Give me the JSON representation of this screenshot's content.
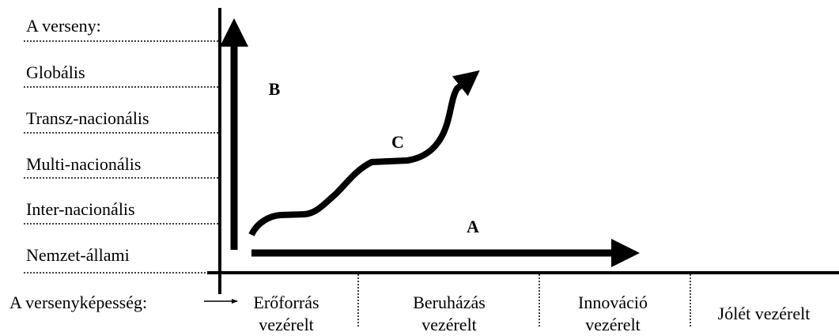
{
  "y_labels": [
    "A verseny:",
    "Globális",
    "Transz-nacionális",
    "Multi-nacionális",
    "Inter-nacionális",
    "Nemzet-állami"
  ],
  "x_axis_title": "A versenyképesség:",
  "x_labels": [
    [
      "Erőforrás",
      "vezérelt"
    ],
    [
      "Beruházás",
      "vezérelt"
    ],
    [
      "Innováció",
      "vezérelt"
    ],
    [
      "Jólét vezérelt"
    ]
  ],
  "arrows": {
    "a": "A",
    "b": "B",
    "c": "C"
  }
}
